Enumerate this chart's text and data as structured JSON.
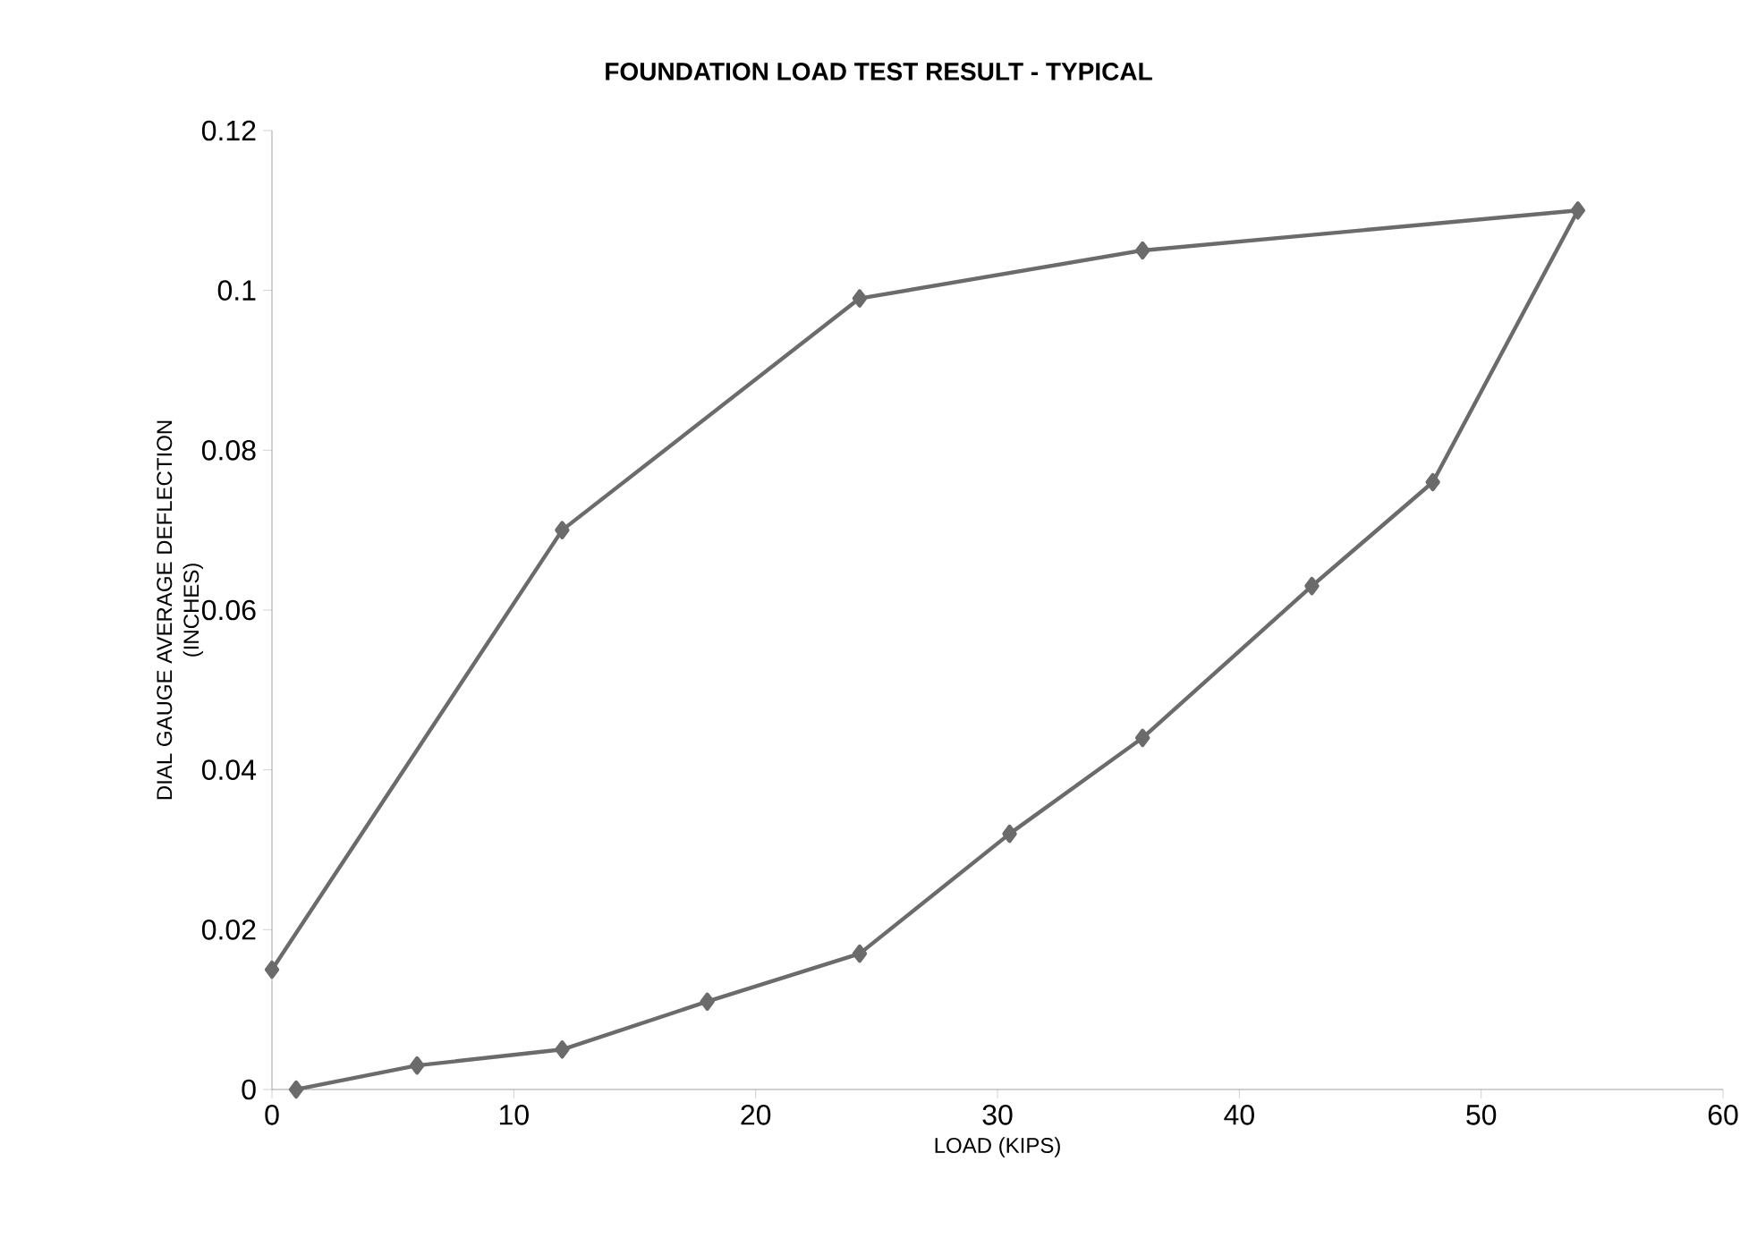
{
  "chart_data": {
    "type": "line",
    "title": "FOUNDATION LOAD TEST RESULT - TYPICAL",
    "xlabel": "LOAD (KIPS)",
    "ylabel": "DIAL GAUGE AVERAGE DEFLECTION (INCHES)",
    "series": [
      {
        "color": "#6b6b6b",
        "x": [
          1,
          6,
          12,
          18,
          24.3,
          30.5,
          36,
          43,
          48,
          54,
          36,
          24.3,
          12,
          0
        ],
        "values": [
          0,
          0.003,
          0.005,
          0.011,
          0.017,
          0.032,
          0.044,
          0.063,
          0.076,
          0.11,
          0.105,
          0.099,
          0.07,
          0.015
        ]
      }
    ],
    "xlim": [
      0,
      60
    ],
    "xticks": [
      0,
      10,
      20,
      30,
      40,
      50,
      60
    ],
    "ylim": [
      0,
      0.12
    ],
    "yticks": [
      0,
      0.02,
      0.04,
      0.06,
      0.08,
      0.1,
      0.12
    ],
    "grid": false,
    "marker": "diamond",
    "line_style": "solid"
  }
}
